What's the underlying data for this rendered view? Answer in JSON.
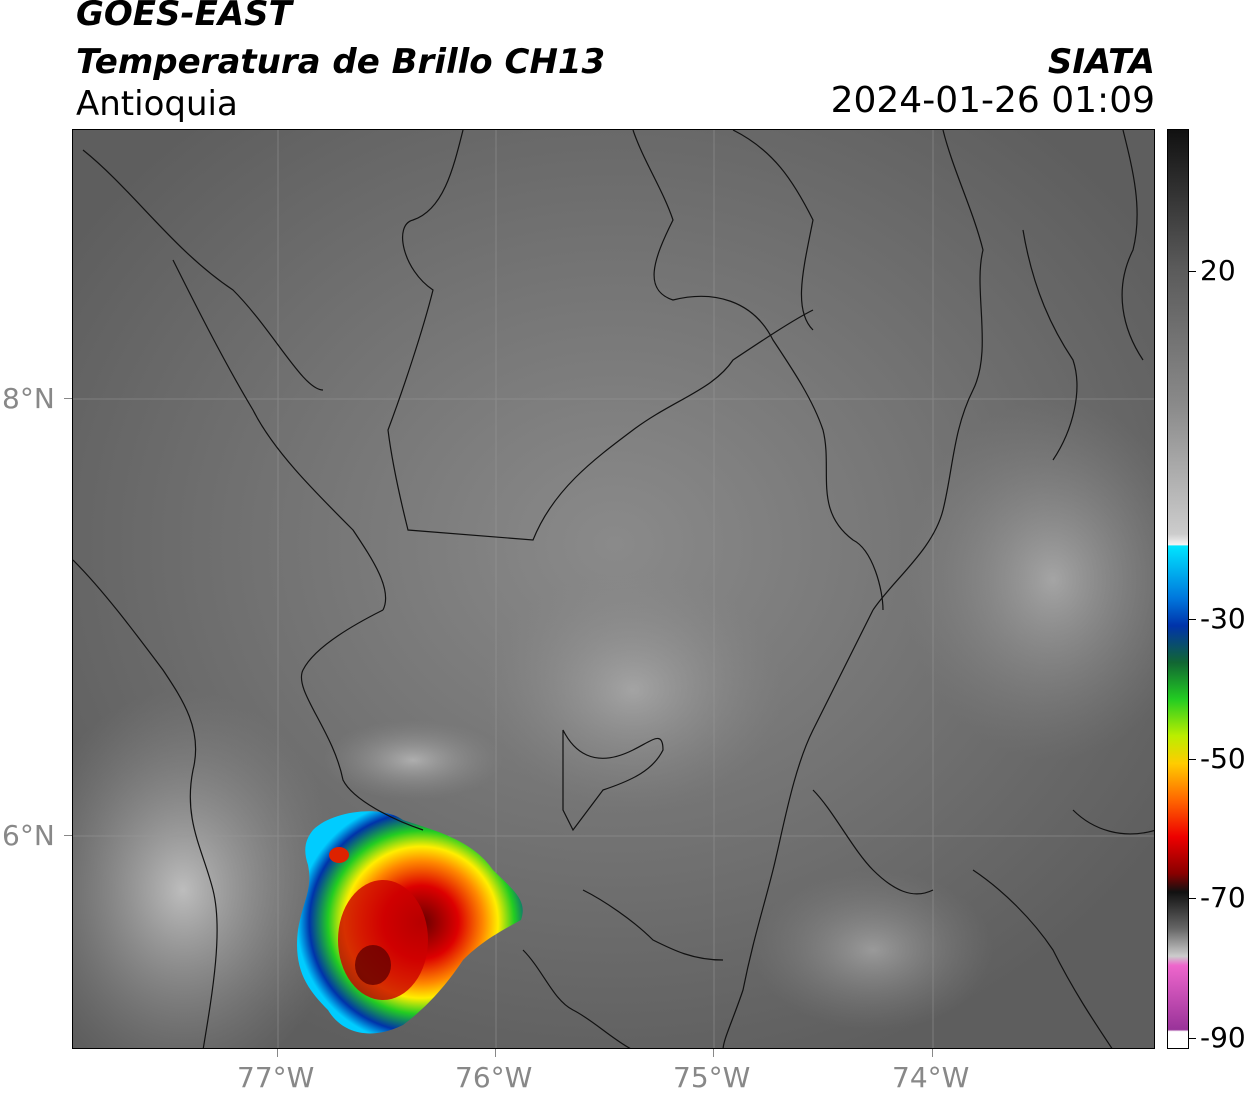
{
  "header": {
    "satellite": "GOES-EAST",
    "product": "Temperatura de Brillo CH13",
    "region": "Antioquia",
    "brand": "SIATA",
    "timestamp": "2024-01-26 01:09"
  },
  "map": {
    "lat_labels": [
      "8°N",
      "6°N"
    ],
    "lon_labels": [
      "77°W",
      "76°W",
      "75°W",
      "74°W"
    ],
    "background_gray": "#707070"
  },
  "colorbar": {
    "labels": [
      "20",
      "-30",
      "-50",
      "-70",
      "-90"
    ],
    "colors": {
      "cyan": "#00e5ff",
      "blue": "#0033aa",
      "green": "#22cc22",
      "yellow": "#ffee00",
      "orange": "#ff8800",
      "red": "#ee0000",
      "dark_red": "#660000",
      "pink": "#ee66cc",
      "purple": "#993399"
    }
  }
}
